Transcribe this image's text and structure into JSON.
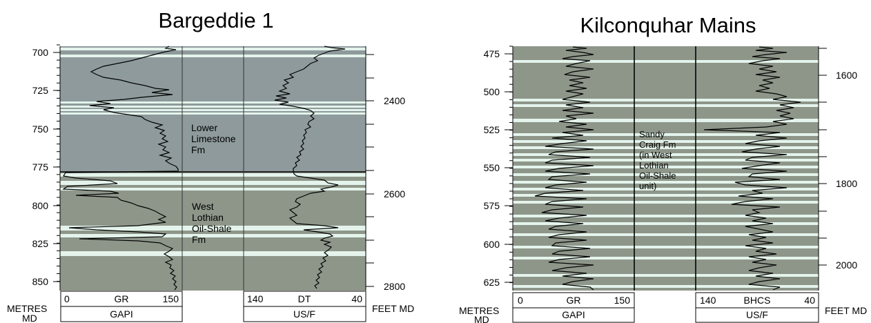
{
  "panels": [
    {
      "title": "Bargeddie 1",
      "depth_unit_label": [
        "METRES",
        "MD"
      ],
      "feet_unit_label": "FEET MD",
      "metre_ticks": [
        700,
        725,
        750,
        775,
        800,
        825,
        850
      ],
      "feet_ticks": [
        2400,
        2600,
        2800
      ],
      "formation_labels": [
        {
          "lines": [
            "Lower",
            "Limestone",
            "Fm"
          ]
        },
        {
          "lines": [
            "West",
            "Lothian",
            "Oil-Shale",
            "Fm"
          ]
        }
      ],
      "track1": {
        "curve": "GR",
        "scale_left": "0",
        "scale_right": "150",
        "unit": "GAPI"
      },
      "track2": {
        "curve": "DT",
        "scale_left": "140",
        "scale_right": "40",
        "unit": "US/F"
      }
    },
    {
      "title": "Kilconquhar Mains",
      "depth_unit_label": [
        "METRES",
        "MD"
      ],
      "feet_unit_label": "FEET MD",
      "metre_ticks": [
        475,
        500,
        525,
        550,
        575,
        600,
        625
      ],
      "feet_ticks": [
        1600,
        1800,
        2000
      ],
      "formation_labels": [
        {
          "lines": [
            "Sandy",
            "Craig Fm",
            "(in West",
            "Lothian",
            "Oil-Shale",
            "unit)"
          ]
        }
      ],
      "track1": {
        "curve": "GR",
        "scale_left": "0",
        "scale_right": "150",
        "unit": "GAPI"
      },
      "track2": {
        "curve": "BHCS",
        "scale_left": "140",
        "scale_right": "40",
        "unit": "US/F"
      }
    }
  ],
  "colors": {
    "upper_fill": "#8e9a9c",
    "lower_fill": "#8e968a",
    "band": "#e4f4ec",
    "curve": "#000000"
  }
}
